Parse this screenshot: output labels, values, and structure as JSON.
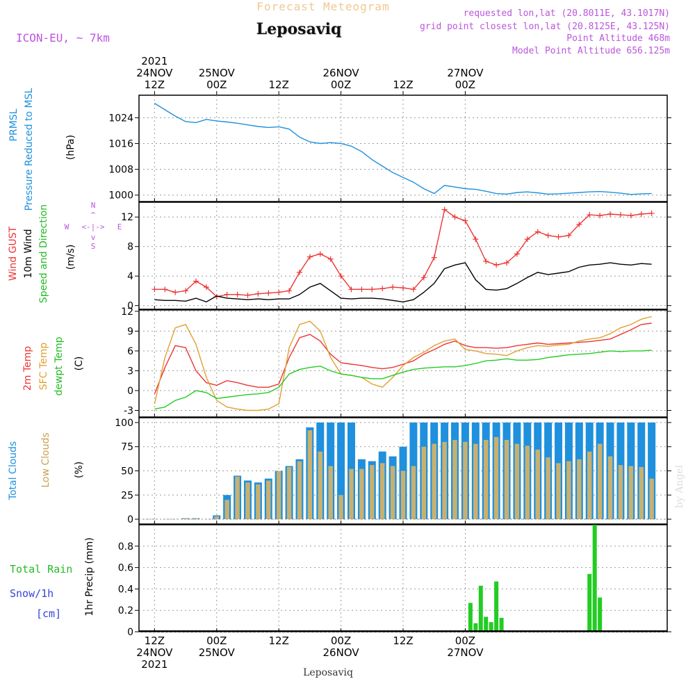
{
  "header": {
    "product": "Forecast Meteogram",
    "location": "Leposaviq",
    "model": "ICON-EU, ~ 7km",
    "info_lines": [
      "requested lon,lat (20.8011E, 43.1017N)",
      "grid point closest lon,lat (20.8125E, 43.125N)",
      "Point Altitude 468m",
      "Model Point Altitude 656.125m"
    ],
    "footer": "Leposaviq",
    "watermark": "by Angel"
  },
  "colors": {
    "pressure": "#1e90dd",
    "gust": "#ee3333",
    "wind": "#000000",
    "speed_dir": "#22bb22",
    "temp2m": "#ee3333",
    "sfc_temp": "#e0a030",
    "dewpoint": "#22cc22",
    "total_clouds": "#1e90dd",
    "low_clouds": "#c8b070",
    "rain": "#22cc22",
    "snow": "#3344dd",
    "purple_text": "#bb55dd",
    "title_orange": "#f0c890"
  },
  "chart_data": [
    {
      "id": "pressure",
      "type": "line",
      "labels": [
        "PRMSL",
        "Pressure Reduced to MSL"
      ],
      "ylabel": "(hPa)",
      "ylim": [
        998,
        1031
      ],
      "yticks": [
        1000,
        1008,
        1016,
        1024
      ],
      "x": [
        0,
        2,
        4,
        6,
        8,
        10,
        12,
        14,
        16,
        18,
        20,
        22,
        24,
        26,
        28,
        30,
        32,
        34,
        36,
        38,
        40,
        42,
        44,
        46,
        48,
        50,
        52,
        54,
        56,
        58,
        60,
        62,
        64,
        66,
        68,
        70,
        72,
        74,
        76,
        78,
        80,
        82,
        84,
        86,
        88,
        90,
        92,
        94,
        96
      ],
      "series": [
        {
          "values": [
            1028.5,
            1026.5,
            1024.5,
            1022.8,
            1022.5,
            1023.5,
            1023.0,
            1022.7,
            1022.3,
            1021.8,
            1021.3,
            1021.0,
            1021.2,
            1020.5,
            1018.0,
            1016.5,
            1016.0,
            1016.3,
            1016.0,
            1015.2,
            1013.5,
            1011.0,
            1009.0,
            1007.0,
            1005.5,
            1004.0,
            1002.0,
            1000.5,
            1003.0,
            1002.5,
            1002.0,
            1001.8,
            1001.2,
            1000.5,
            1000.3,
            1000.8,
            1001.0,
            1000.7,
            1000.3,
            1000.4,
            1000.6,
            1000.8,
            1001.0,
            1001.1,
            1000.9,
            1000.6,
            1000.2,
            1000.4,
            1000.5
          ]
        }
      ]
    },
    {
      "id": "wind",
      "type": "line",
      "labels": [
        "Wind GUST",
        "10m Wind",
        "Speed and Direction"
      ],
      "ylabel": "(m/s)",
      "compass": [
        "N",
        "W",
        "E",
        "S"
      ],
      "ylim": [
        -0.5,
        14
      ],
      "yticks": [
        0,
        4,
        8,
        12
      ],
      "x": [
        0,
        2,
        4,
        6,
        8,
        10,
        12,
        14,
        16,
        18,
        20,
        22,
        24,
        26,
        28,
        30,
        32,
        34,
        36,
        38,
        40,
        42,
        44,
        46,
        48,
        50,
        52,
        54,
        56,
        58,
        60,
        62,
        64,
        66,
        68,
        70,
        72,
        74,
        76,
        78,
        80,
        82,
        84,
        86,
        88,
        90,
        92,
        94,
        96
      ],
      "series": [
        {
          "name": "gust",
          "values": [
            2.2,
            2.2,
            1.8,
            2.0,
            3.3,
            2.5,
            1.2,
            1.5,
            1.5,
            1.4,
            1.6,
            1.7,
            1.8,
            2.0,
            4.5,
            6.6,
            7.0,
            6.3,
            4.0,
            2.2,
            2.2,
            2.2,
            2.3,
            2.5,
            2.4,
            2.2,
            3.8,
            6.5,
            13.0,
            12.0,
            11.5,
            9.0,
            6.0,
            5.5,
            5.8,
            7.0,
            9.0,
            10.0,
            9.5,
            9.3,
            9.5,
            11.0,
            12.3,
            12.2,
            12.4,
            12.3,
            12.2,
            12.4,
            12.5
          ]
        },
        {
          "name": "wind",
          "values": [
            0.8,
            0.7,
            0.7,
            0.6,
            1.0,
            0.5,
            1.3,
            1.0,
            0.9,
            0.8,
            0.9,
            0.8,
            0.9,
            0.9,
            1.5,
            2.5,
            3.0,
            2.0,
            1.0,
            0.9,
            1.0,
            1.0,
            0.9,
            0.7,
            0.5,
            0.8,
            1.8,
            3.0,
            5.0,
            5.5,
            5.8,
            3.5,
            2.2,
            2.1,
            2.3,
            3.0,
            3.8,
            4.5,
            4.2,
            4.4,
            4.6,
            5.2,
            5.5,
            5.6,
            5.8,
            5.6,
            5.5,
            5.7,
            5.6
          ]
        }
      ]
    },
    {
      "id": "temperature",
      "type": "line",
      "labels": [
        "2m Temp",
        "SFC Temp",
        "dewpt Temp"
      ],
      "ylabel": "(C)",
      "ylim": [
        -4,
        12.2
      ],
      "yticks": [
        -3,
        0,
        3,
        6,
        9,
        12
      ],
      "x": [
        0,
        2,
        4,
        6,
        8,
        10,
        12,
        14,
        16,
        18,
        20,
        22,
        24,
        26,
        28,
        30,
        32,
        34,
        36,
        38,
        40,
        42,
        44,
        46,
        48,
        50,
        52,
        54,
        56,
        58,
        60,
        62,
        64,
        66,
        68,
        70,
        72,
        74,
        76,
        78,
        80,
        82,
        84,
        86,
        88,
        90,
        92,
        94,
        96
      ],
      "series": [
        {
          "name": "2m",
          "values": [
            -0.5,
            3.5,
            6.8,
            6.5,
            3.0,
            1.2,
            0.8,
            1.5,
            1.2,
            0.8,
            0.5,
            0.5,
            1.0,
            5.0,
            8.0,
            8.5,
            7.5,
            5.5,
            4.2,
            4.0,
            3.8,
            3.5,
            3.3,
            3.5,
            4.0,
            4.5,
            5.5,
            6.2,
            7.0,
            7.5,
            6.8,
            6.5,
            6.5,
            6.4,
            6.5,
            6.8,
            7.0,
            7.2,
            7.0,
            7.1,
            7.2,
            7.3,
            7.4,
            7.6,
            7.8,
            8.5,
            9.2,
            10.0,
            10.2
          ]
        },
        {
          "name": "sfc",
          "values": [
            -2.0,
            5.0,
            9.5,
            10.0,
            7.0,
            2.0,
            -1.5,
            -2.5,
            -2.8,
            -3.0,
            -3.0,
            -2.8,
            -2.0,
            6.5,
            10.0,
            10.5,
            9.0,
            5.0,
            2.5,
            2.3,
            2.0,
            1.0,
            0.5,
            2.0,
            3.8,
            5.0,
            5.8,
            6.8,
            7.5,
            7.8,
            6.2,
            6.0,
            5.6,
            5.5,
            5.3,
            6.0,
            6.5,
            6.8,
            6.7,
            6.9,
            7.0,
            7.5,
            7.8,
            8.0,
            8.6,
            9.5,
            10.0,
            10.8,
            11.2
          ]
        },
        {
          "name": "dewpoint",
          "values": [
            -2.8,
            -2.5,
            -1.5,
            -1.0,
            0.0,
            -0.3,
            -1.2,
            -1.0,
            -0.8,
            -0.6,
            -0.5,
            -0.3,
            0.5,
            2.5,
            3.2,
            3.5,
            3.7,
            3.0,
            2.5,
            2.3,
            2.0,
            1.8,
            1.8,
            2.3,
            2.8,
            3.2,
            3.4,
            3.5,
            3.6,
            3.6,
            3.8,
            4.1,
            4.5,
            4.6,
            4.8,
            4.6,
            4.6,
            4.7,
            5.0,
            5.2,
            5.4,
            5.5,
            5.6,
            5.8,
            6.0,
            5.9,
            6.0,
            6.0,
            6.1
          ]
        }
      ]
    },
    {
      "id": "clouds",
      "type": "bar",
      "labels": [
        "Total Clouds",
        "Low Clouds"
      ],
      "ylabel": "(%)",
      "ylim": [
        -5,
        105
      ],
      "yticks": [
        0,
        25,
        50,
        75,
        100
      ],
      "x": [
        0,
        2,
        4,
        6,
        8,
        10,
        12,
        14,
        16,
        18,
        20,
        22,
        24,
        26,
        28,
        30,
        32,
        34,
        36,
        38,
        40,
        42,
        44,
        46,
        48,
        50,
        52,
        54,
        56,
        58,
        60,
        62,
        64,
        66,
        68,
        70,
        72,
        74,
        76,
        78,
        80,
        82,
        84,
        86,
        88,
        90,
        92,
        94,
        96
      ],
      "series": [
        {
          "name": "total",
          "values": [
            0,
            0,
            0,
            1,
            1,
            0,
            4,
            25,
            45,
            40,
            38,
            42,
            50,
            55,
            62,
            95,
            100,
            100,
            100,
            100,
            62,
            60,
            70,
            65,
            75,
            100,
            100,
            100,
            100,
            100,
            100,
            100,
            100,
            100,
            100,
            100,
            100,
            100,
            100,
            100,
            100,
            100,
            100,
            100,
            100,
            100,
            100,
            100,
            100
          ]
        },
        {
          "name": "low",
          "values": [
            0,
            0,
            0,
            1,
            1,
            0,
            3,
            20,
            44,
            38,
            36,
            40,
            50,
            54,
            60,
            92,
            70,
            55,
            25,
            52,
            52,
            56,
            58,
            55,
            50,
            55,
            75,
            78,
            80,
            82,
            80,
            78,
            82,
            85,
            82,
            78,
            76,
            72,
            64,
            58,
            60,
            62,
            70,
            78,
            65,
            56,
            55,
            54,
            42
          ]
        }
      ]
    },
    {
      "id": "precip",
      "type": "bar",
      "labels": [
        "Total Rain",
        "Snow/1h",
        "[cm]"
      ],
      "ylabel": "1hr Precip (mm)",
      "ylim": [
        0,
        1.0
      ],
      "yticks": [
        0,
        0.2,
        0.4,
        0.6,
        0.8
      ],
      "series": [
        {
          "name": "rain",
          "points": [
            [
              60,
              0.01
            ],
            [
              61,
              0.27
            ],
            [
              62,
              0.08
            ],
            [
              63,
              0.43
            ],
            [
              64,
              0.14
            ],
            [
              65,
              0.09
            ],
            [
              66,
              0.47
            ],
            [
              67,
              0.13
            ],
            [
              68,
              0.01
            ],
            [
              84,
              0.54
            ],
            [
              85,
              1.0
            ],
            [
              86,
              0.32
            ],
            [
              87,
              0.01
            ]
          ]
        }
      ]
    }
  ],
  "time_axis": {
    "range_hours": [
      -3,
      99
    ],
    "top_labels": [
      {
        "hour": 0,
        "lines": [
          "2021",
          "24NOV",
          "12Z"
        ]
      },
      {
        "hour": 12,
        "lines": [
          "25NOV",
          "00Z"
        ]
      },
      {
        "hour": 24,
        "lines": [
          "12Z"
        ]
      },
      {
        "hour": 36,
        "lines": [
          "26NOV",
          "00Z"
        ]
      },
      {
        "hour": 48,
        "lines": [
          "12Z"
        ]
      },
      {
        "hour": 60,
        "lines": [
          "27NOV",
          "00Z"
        ]
      }
    ],
    "bottom_labels": [
      {
        "hour": 0,
        "lines": [
          "12Z",
          "24NOV",
          "2021"
        ]
      },
      {
        "hour": 12,
        "lines": [
          "00Z",
          "25NOV"
        ]
      },
      {
        "hour": 24,
        "lines": [
          "12Z"
        ]
      },
      {
        "hour": 36,
        "lines": [
          "00Z",
          "26NOV"
        ]
      },
      {
        "hour": 48,
        "lines": [
          "12Z"
        ]
      },
      {
        "hour": 60,
        "lines": [
          "00Z",
          "27NOV"
        ]
      }
    ]
  }
}
